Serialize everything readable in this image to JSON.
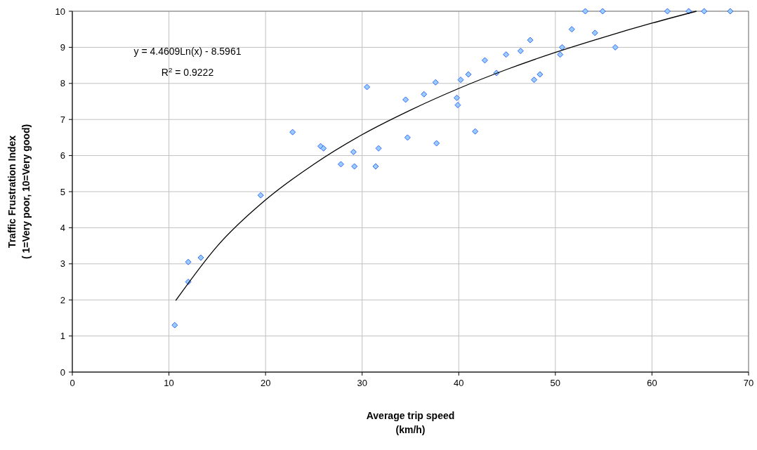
{
  "chart_data": {
    "type": "scatter",
    "xlabel": "Average trip speed\n(km/h)",
    "ylabel": "Traffic Frustration Index\n( 1=Very poor, 10=Very good)",
    "annotations": [
      "y = 4.4609Ln(x) - 8.5961",
      "R$^{2}$ = 0.9222"
    ],
    "xlim": [
      0,
      70
    ],
    "xticks": [
      0,
      10,
      20,
      30,
      40,
      50,
      60,
      70
    ],
    "ylim": [
      0,
      10
    ],
    "yticks": [
      0,
      1,
      2,
      3,
      4,
      5,
      6,
      7,
      8,
      9,
      10
    ],
    "grid": true,
    "series": [
      {
        "marker": "diamond",
        "color": "#3366ff",
        "x": [
          10.6,
          12.0,
          12.0,
          13.3,
          19.5,
          22.8,
          25.7,
          26.0,
          27.8,
          29.1,
          29.2,
          30.5,
          31.4,
          31.7,
          34.5,
          34.7,
          36.4,
          37.6,
          37.7,
          39.8,
          39.9,
          40.2,
          41.0,
          41.7,
          42.7,
          43.9,
          44.9,
          46.4,
          47.4,
          47.8,
          48.4,
          50.5,
          50.7,
          51.7,
          53.1,
          54.1,
          54.9,
          56.2,
          61.6,
          63.8,
          65.4,
          68.1
        ],
        "values": [
          1.3,
          2.5,
          3.05,
          3.17,
          4.9,
          6.65,
          6.26,
          6.2,
          5.76,
          6.1,
          5.7,
          7.9,
          5.7,
          6.2,
          7.55,
          6.5,
          7.7,
          8.03,
          6.34,
          7.6,
          7.4,
          8.1,
          8.25,
          6.67,
          8.64,
          8.29,
          8.8,
          8.9,
          9.2,
          8.1,
          8.25,
          8.8,
          9.0,
          9.5,
          10,
          9.4,
          10,
          9.0,
          10,
          10,
          10,
          10
        ]
      },
      {
        "type": "line",
        "marker": "none",
        "line_style": "solid",
        "color": "#000000",
        "x": [
          10.7,
          15,
          20,
          25,
          30,
          35,
          40,
          45,
          50,
          55,
          60,
          64.6
        ],
        "values": [
          1.98,
          3.49,
          4.77,
          5.76,
          6.58,
          7.26,
          7.86,
          8.39,
          8.86,
          9.28,
          9.67,
          10.0
        ]
      }
    ]
  }
}
